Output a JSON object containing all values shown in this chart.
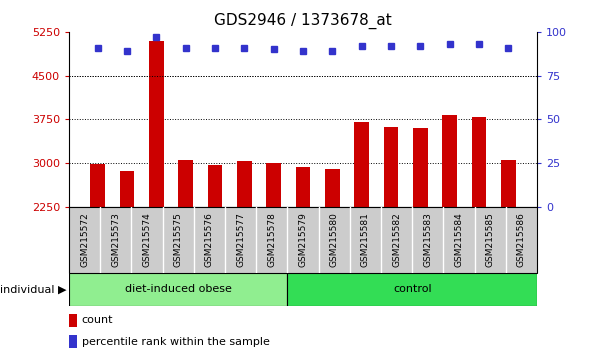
{
  "title": "GDS2946 / 1373678_at",
  "categories": [
    "GSM215572",
    "GSM215573",
    "GSM215574",
    "GSM215575",
    "GSM215576",
    "GSM215577",
    "GSM215578",
    "GSM215579",
    "GSM215580",
    "GSM215581",
    "GSM215582",
    "GSM215583",
    "GSM215584",
    "GSM215585",
    "GSM215586"
  ],
  "bar_values": [
    2990,
    2870,
    5100,
    3060,
    2970,
    3040,
    3010,
    2940,
    2900,
    3700,
    3620,
    3610,
    3820,
    3800,
    3050
  ],
  "dot_values": [
    91,
    89,
    97,
    91,
    91,
    91,
    90,
    89,
    89,
    92,
    92,
    92,
    93,
    93,
    91
  ],
  "bar_color": "#cc0000",
  "dot_color": "#3333cc",
  "ylim_left": [
    2250,
    5250
  ],
  "yticks_left": [
    2250,
    3000,
    3750,
    4500,
    5250
  ],
  "ylim_right": [
    0,
    100
  ],
  "yticks_right": [
    0,
    25,
    50,
    75,
    100
  ],
  "grid_values": [
    3000,
    3750,
    4500
  ],
  "group1_label": "diet-induced obese",
  "group1_count": 7,
  "group2_label": "control",
  "group2_count": 8,
  "individual_label": "individual",
  "legend_bar": "count",
  "legend_dot": "percentile rank within the sample",
  "group1_color": "#90ee90",
  "group2_color": "#33dd55",
  "tick_bg_color": "#cccccc",
  "xlabel_color": "#cc0000",
  "ylabel_right_color": "#3333cc",
  "title_fontsize": 11
}
